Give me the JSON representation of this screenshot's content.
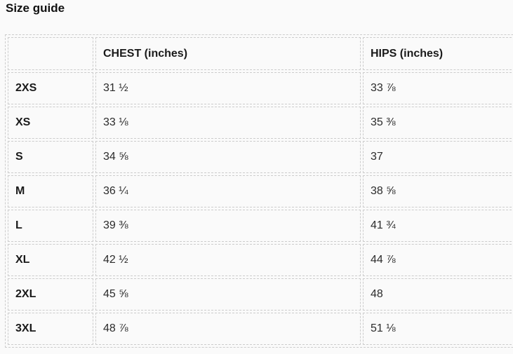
{
  "page": {
    "title": "Size guide"
  },
  "colors": {
    "background": "#fafafa",
    "border": "#cccccc",
    "title_text": "#111111",
    "cell_text": "#2b2b2b"
  },
  "table": {
    "columns": [
      "",
      "CHEST (inches)",
      "HIPS (inches)"
    ],
    "rows": [
      {
        "size": "2XS",
        "chest": "31 ½",
        "hips": "33 ⅞"
      },
      {
        "size": "XS",
        "chest": "33 ⅛",
        "hips": "35 ⅜"
      },
      {
        "size": "S",
        "chest": "34 ⅝",
        "hips": "37"
      },
      {
        "size": "M",
        "chest": "36 ¼",
        "hips": "38 ⅝"
      },
      {
        "size": "L",
        "chest": "39 ⅜",
        "hips": "41 ¾"
      },
      {
        "size": "XL",
        "chest": "42 ½",
        "hips": "44 ⅞"
      },
      {
        "size": "2XL",
        "chest": "45 ⅝",
        "hips": "48"
      },
      {
        "size": "3XL",
        "chest": "48 ⅞",
        "hips": "51 ⅛"
      }
    ]
  }
}
